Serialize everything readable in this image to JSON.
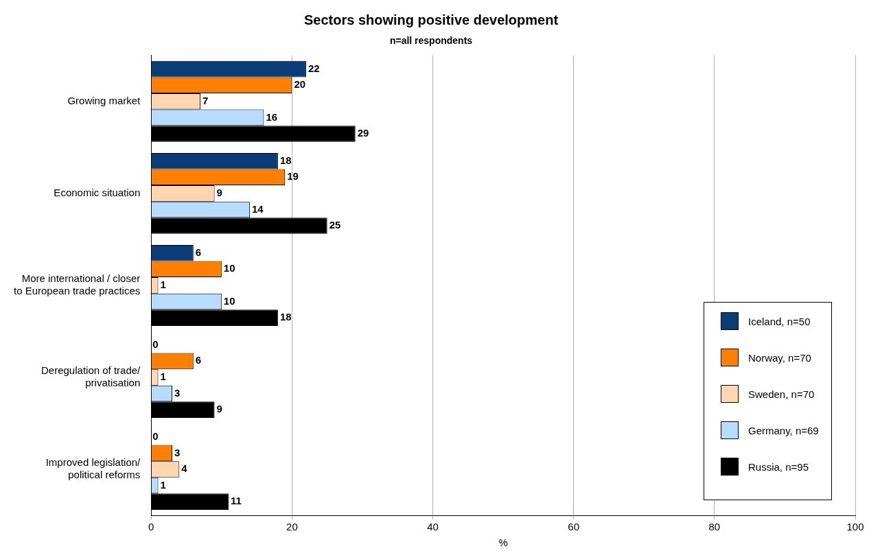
{
  "chart_data": {
    "type": "bar",
    "orientation": "horizontal",
    "title": "Sectors showing positive development",
    "subtitle": "n=all respondents",
    "xlabel": "%",
    "categories": [
      "Growing market",
      "Economic situation",
      "More international / closer\nto European trade practices",
      "Deregulation of trade/\nprivatisation",
      "Improved legislation/\npolitical reforms"
    ],
    "series": [
      {
        "name": "Iceland, n=50",
        "color": "#0a3d78",
        "values": [
          22,
          18,
          6,
          0,
          0
        ]
      },
      {
        "name": "Norway, n=70",
        "color": "#ff7f00",
        "values": [
          20,
          19,
          10,
          6,
          3
        ]
      },
      {
        "name": "Sweden, n=70",
        "color": "#ffd6b0",
        "values": [
          7,
          9,
          1,
          1,
          4
        ]
      },
      {
        "name": "Germany, n=69",
        "color": "#b8dcff",
        "values": [
          16,
          14,
          10,
          3,
          1
        ]
      },
      {
        "name": "Russia, n=95",
        "color": "#000000",
        "values": [
          29,
          25,
          18,
          9,
          11
        ]
      }
    ],
    "xlim": [
      0,
      100
    ],
    "xticks": [
      0,
      20,
      40,
      60,
      80,
      100
    ],
    "grid": "x",
    "legend": "bottom right",
    "data_labels": true
  }
}
